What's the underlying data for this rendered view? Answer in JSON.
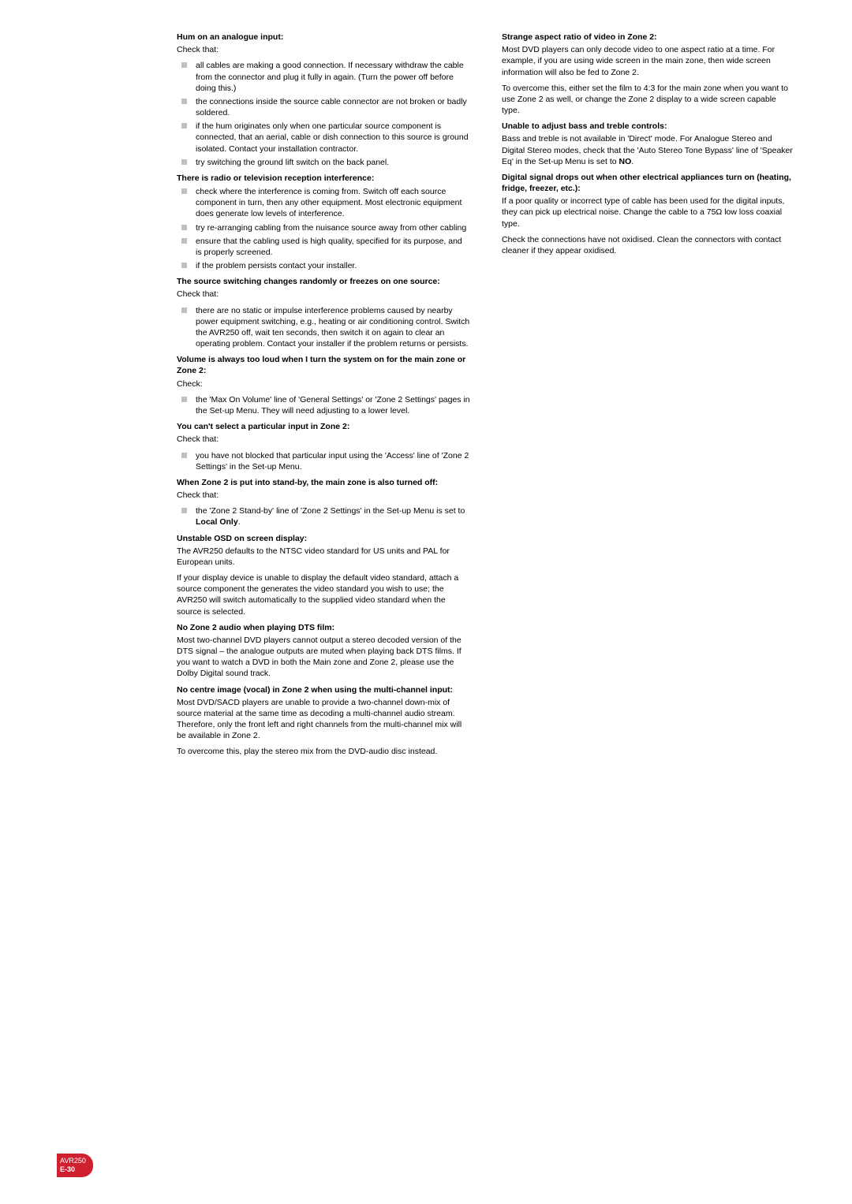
{
  "left": {
    "h1": "Hum on an analogue input:",
    "p1": "Check that:",
    "list1": [
      "all cables are making a good connection. If necessary withdraw the cable from the connector and plug it fully in again. (Turn the power off before doing this.)",
      "the connections inside the source cable connector are not broken or badly soldered.",
      "if the hum originates only when one particular source component is connected, that an aerial, cable or dish connection to this source is ground isolated. Contact your installation contractor.",
      "try switching the ground lift switch on the back panel."
    ],
    "h2": "There is radio or television reception interference:",
    "list2": [
      "check where the interference is coming from. Switch off each source component in turn, then any other equipment. Most electronic equipment does generate low levels of interference.",
      "try re-arranging cabling from the nuisance source away from other cabling",
      "ensure that the cabling used is high quality, specified for its purpose, and is properly screened.",
      "if the problem persists contact your installer."
    ],
    "h3": "The source switching changes randomly or freezes on one source:",
    "p3": "Check that:",
    "list3": [
      "there are no static or impulse interference problems caused by nearby power equipment switching, e.g., heating or air conditioning control. Switch the AVR250 off, wait ten seconds, then switch it on again to clear an operating problem. Contact your installer if the problem returns or persists."
    ],
    "h4": "Volume is always too loud when I turn the system on for the main zone or Zone 2:",
    "p4": "Check:",
    "list4": [
      "the 'Max On Volume' line of 'General Settings' or 'Zone 2 Settings' pages in the Set-up Menu. They will need adjusting to a lower level."
    ],
    "h5": "You can't select a particular input in Zone 2:",
    "p5": "Check that:",
    "list5": [
      "you have not blocked that particular input using the 'Access' line of 'Zone 2 Settings' in the Set-up Menu."
    ],
    "h6": "When Zone 2 is put into stand-by, the main zone is also turned off:",
    "p6": "Check that:",
    "list6_prefix": "the 'Zone 2 Stand-by' line of 'Zone 2 Settings' in the Set-up Menu is set to ",
    "list6_bold": "Local Only",
    "list6_suffix": ".",
    "h7": "Unstable OSD on screen display:",
    "p7a": "The AVR250 defaults to the NTSC video standard for US units and PAL for European units.",
    "p7b": "If your display device is unable to display the default video standard, attach a source component the generates the video standard you wish to use; the AVR250 will switch automatically to the supplied video standard when the source is selected.",
    "h8": "No Zone 2 audio when playing DTS film:",
    "p8": "Most two-channel DVD players cannot output a stereo decoded version of the DTS signal – the analogue outputs are muted when playing back DTS films. If you want to watch a DVD in both the Main zone and Zone 2, please use the Dolby Digital sound track.",
    "h9": "No centre image (vocal) in Zone 2 when using the multi-channel input:",
    "p9a": "Most DVD/SACD players are unable to provide a two-channel down-mix of source material at the same time as decoding a multi-channel audio stream. Therefore, only the front left and right channels from the multi-channel mix will be available in Zone 2.",
    "p9b": "To overcome this, play the stereo mix from the DVD-audio disc instead."
  },
  "right": {
    "h1": "Strange aspect ratio of video in Zone 2:",
    "p1a": "Most DVD players can only decode video to one aspect ratio at a time. For example, if you are using wide screen in the main zone, then wide screen information will also be fed to Zone 2.",
    "p1b": "To overcome this, either set the film to 4:3 for the main zone when you want to use Zone 2 as well, or change the Zone 2 display to a wide screen capable type.",
    "h2": "Unable to adjust bass and treble controls:",
    "p2_prefix": "Bass and treble is not available in 'Direct' mode. For Analogue Stereo and Digital Stereo modes, check that the 'Auto Stereo Tone Bypass' line of 'Speaker Eq' in the Set-up Menu is set to ",
    "p2_bold": "NO",
    "p2_suffix": ".",
    "h3": "Digital signal drops out when other electrical appliances turn on (heating, fridge, freezer, etc.):",
    "p3a": "If a poor quality or incorrect type of cable has been used for the digital inputs, they can pick up electrical noise. Change the cable to a 75Ω low loss coaxial type.",
    "p3b": "Check the connections have not oxidised. Clean the connectors with contact cleaner if they appear oxidised."
  },
  "footer": {
    "model": "AVR250",
    "page": "E-30"
  }
}
